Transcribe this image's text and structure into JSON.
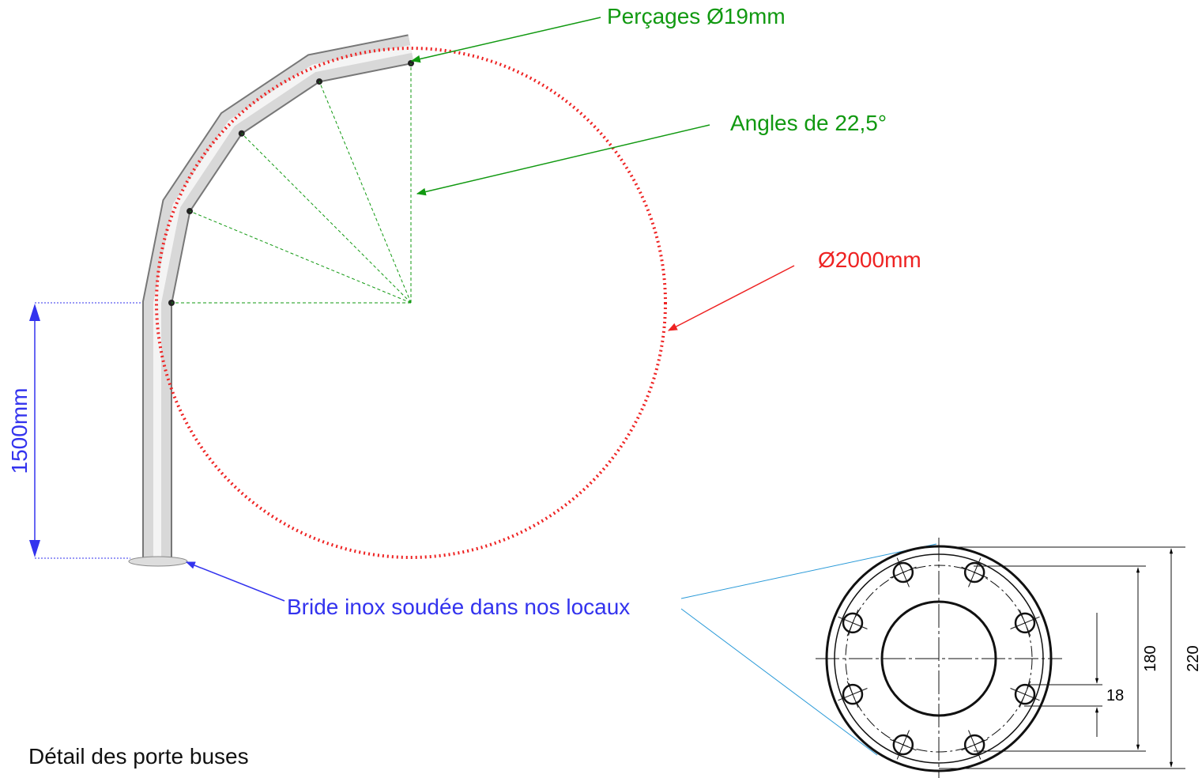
{
  "annotations": {
    "drilling": "Perçages Ø19mm",
    "angles": "Angles de 22,5°",
    "diameter": "Ø2000mm",
    "height": "1500mm",
    "flange": "Bride inox soudée dans nos locaux"
  },
  "caption": "Détail des porte buses",
  "flange_drawing": {
    "outer_dimension": "220",
    "bolt_circle_dimension": "180",
    "hole_dimension": "18"
  }
}
